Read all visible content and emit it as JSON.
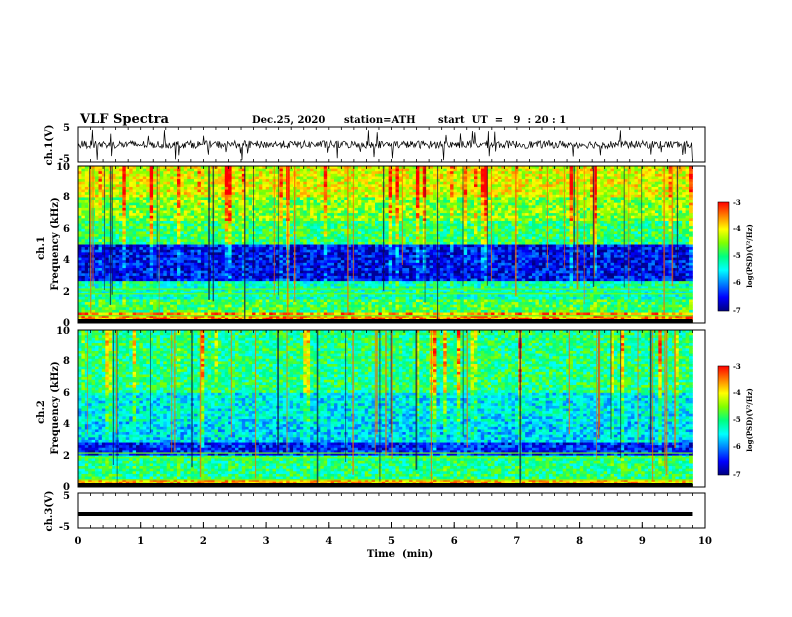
{
  "header": {
    "title": "VLF Spectra",
    "date": "Dec.25, 2020",
    "station": "station=ATH",
    "start_ut": "start  UT  =   9  : 20 : 1"
  },
  "colors": {
    "spectrogram_colormap": [
      "#000080",
      "#0000ff",
      "#0080ff",
      "#00ffff",
      "#00ff80",
      "#80ff00",
      "#ffff00",
      "#ff8000",
      "#ff0000"
    ],
    "trace": "#000000"
  },
  "chart_data": [
    {
      "type": "line",
      "id": "ch1_waveform",
      "ylabel": "ch.1(V)",
      "ylim": [
        -5,
        5
      ],
      "yticks": [
        "5",
        "-5"
      ],
      "xlim": [
        0,
        10
      ],
      "note_values": "noisy waveform around 0 V with spikes to about ±4 V"
    },
    {
      "type": "heatmap",
      "id": "ch1_spectrogram",
      "ylabel": "ch.1",
      "ylabel2": "Frequency (kHz)",
      "ylim": [
        0,
        10
      ],
      "yticks": [
        "0",
        "2",
        "4",
        "6",
        "8",
        "10"
      ],
      "xlim": [
        0,
        9.8
      ],
      "colorbar": {
        "label": "log(PSD)(V²/Hz)",
        "range": [
          -7,
          -3
        ],
        "ticks": [
          "-3",
          "-4",
          "-5",
          "-6",
          "-7"
        ]
      },
      "bands": [
        {
          "f": [
            0,
            0.6
          ],
          "level": 0.85
        },
        {
          "f": [
            0.6,
            1.5
          ],
          "level": 0.55
        },
        {
          "f": [
            1.5,
            2.6
          ],
          "level": 0.45
        },
        {
          "f": [
            2.6,
            5.0
          ],
          "level": 0.12
        },
        {
          "f": [
            5.0,
            6.5
          ],
          "level": 0.52
        },
        {
          "f": [
            6.5,
            8.0
          ],
          "level": 0.62
        },
        {
          "f": [
            8.0,
            10.0
          ],
          "level": 0.72
        }
      ]
    },
    {
      "type": "heatmap",
      "id": "ch2_spectrogram",
      "ylabel": "ch.2",
      "ylabel2": "Frequency (kHz)",
      "ylim": [
        0,
        10
      ],
      "yticks": [
        "0",
        "2",
        "4",
        "6",
        "8",
        "10"
      ],
      "xlim": [
        0,
        9.8
      ],
      "colorbar": {
        "label": "log(PSD)(V²/Hz)",
        "range": [
          -7,
          -3
        ],
        "ticks": [
          "-3",
          "-4",
          "-5",
          "-6",
          "-7"
        ]
      },
      "bands": [
        {
          "f": [
            0,
            0.5
          ],
          "level": 0.8
        },
        {
          "f": [
            0.5,
            2.0
          ],
          "level": 0.5
        },
        {
          "f": [
            2.0,
            2.9
          ],
          "level": 0.15
        },
        {
          "f": [
            2.9,
            4.2
          ],
          "level": 0.35
        },
        {
          "f": [
            4.2,
            6.0
          ],
          "level": 0.38
        },
        {
          "f": [
            6.0,
            10.0
          ],
          "level": 0.5
        }
      ]
    },
    {
      "type": "line",
      "id": "ch3_waveform",
      "ylabel": "ch.3(V)",
      "ylim": [
        -5,
        5
      ],
      "yticks": [
        "5",
        "-5"
      ],
      "xlim": [
        0,
        9.8
      ],
      "x": [
        0,
        9.8
      ],
      "y": [
        -1,
        -1
      ]
    }
  ],
  "xaxis": {
    "label": "Time  (min)",
    "range": [
      0,
      10
    ],
    "ticks": [
      "0",
      "1",
      "2",
      "3",
      "4",
      "5",
      "6",
      "7",
      "8",
      "9",
      "10"
    ]
  }
}
